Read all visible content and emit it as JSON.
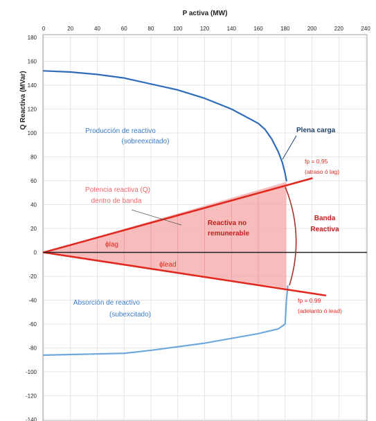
{
  "chart_data": {
    "type": "line",
    "title": "",
    "xlabel": "P activa (MW)",
    "ylabel": "Q Reactiva (MVar)",
    "xlim": [
      0,
      240
    ],
    "ylim": [
      -140,
      180
    ],
    "x_ticks": [
      0,
      20,
      40,
      60,
      80,
      100,
      120,
      140,
      160,
      180,
      200,
      220,
      240
    ],
    "y_ticks": [
      180,
      160,
      140,
      120,
      100,
      80,
      60,
      40,
      20,
      0,
      -20,
      -40,
      -60,
      -80,
      -100,
      -120,
      -140
    ],
    "grid": true,
    "series": [
      {
        "role": "capability_overexcited",
        "color": "#2e6bb8",
        "x": [
          0,
          20,
          40,
          60,
          80,
          100,
          120,
          140,
          160,
          165,
          170,
          175,
          178,
          180,
          181
        ],
        "y": [
          152,
          151,
          149,
          146,
          141,
          136,
          129,
          120,
          108,
          103,
          95,
          84,
          75,
          66,
          60
        ]
      },
      {
        "role": "capability_underexcited",
        "color": "#6fa8dc",
        "x": [
          0,
          20,
          40,
          60,
          80,
          100,
          120,
          140,
          160,
          175,
          180,
          181,
          182
        ],
        "y": [
          -86,
          -85.5,
          -85,
          -84.5,
          -82,
          -79,
          -76,
          -72,
          -68,
          -64,
          -60,
          -40,
          -28
        ]
      },
      {
        "role": "fp_lag_line",
        "color": "#e0281e",
        "x": [
          0,
          200
        ],
        "y": [
          0,
          62
        ]
      },
      {
        "role": "fp_lead_line",
        "color": "#e0281e",
        "x": [
          0,
          210
        ],
        "y": [
          0,
          -36
        ]
      }
    ],
    "shaded_region": {
      "color": "#f4a6a6",
      "polygon": [
        [
          0,
          0
        ],
        [
          181,
          59
        ],
        [
          181,
          -30
        ]
      ],
      "hatch_x": [
        20,
        40,
        60,
        80,
        100,
        120,
        140,
        160
      ]
    },
    "zero_line": {
      "y": 0
    },
    "annotations": {
      "produccion": {
        "line1": "Producción  de  reactivo",
        "line2": "(sobreexcitado)"
      },
      "plena_carga": "Plena carga",
      "fp_lag": {
        "line1": "fp = 0.95",
        "line2": "(atraso ó lag)"
      },
      "potencia_q": {
        "line1": "Potencia reactiva (Q)",
        "line2": "dentro de banda"
      },
      "reactiva_no": {
        "line1": "Reactiva no",
        "line2": "remunerable"
      },
      "banda": {
        "line1": "Banda",
        "line2": "Reactiva"
      },
      "phi_lag": "ϕlag",
      "phi_lead": "ϕlead",
      "absorcion": {
        "line1": "Absorción  de  reactivo",
        "line2": "(subexcitado)"
      },
      "fp_lead": {
        "line1": "fp = 0.99",
        "line2": "(adelanto ó lead)"
      }
    }
  }
}
